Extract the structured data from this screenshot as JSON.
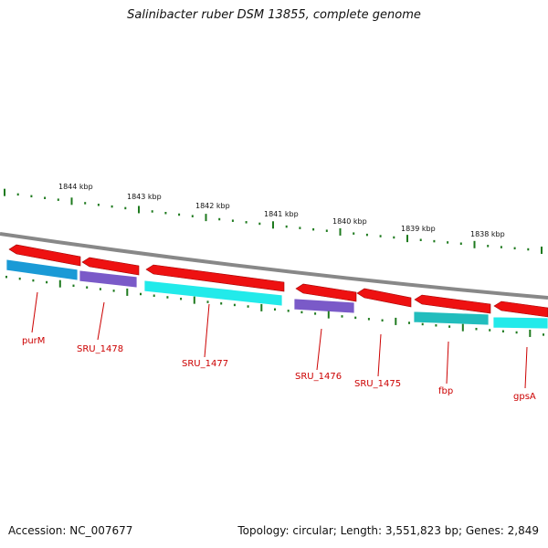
{
  "title": "Salinibacter ruber DSM 13855, complete genome",
  "footer": {
    "accession": "Accession: NC_007677",
    "stats": "Topology: circular; Length: 3,551,823 bp; Genes: 2,849"
  },
  "ruler_labels": [
    "1844 kbp",
    "1843 kbp",
    "1842 kbp",
    "1841 kbp",
    "1840 kbp",
    "1839 kbp",
    "1838 kbp"
  ],
  "gene_labels": [
    "purM",
    "SRU_1478",
    "SRU_1477",
    "SRU_1476",
    "SRU_1475",
    "fbp",
    "gpsA"
  ],
  "colors": {
    "backbone": "#888888",
    "ruler": "#1e7a1e",
    "gene_arrow": "#ee1111",
    "cds_blue": "#1a9ad6",
    "cds_purple": "#7a5ac8",
    "cds_cyan": "#22eaea",
    "cds_teal": "#22bdbd",
    "label": "#cc0000"
  }
}
